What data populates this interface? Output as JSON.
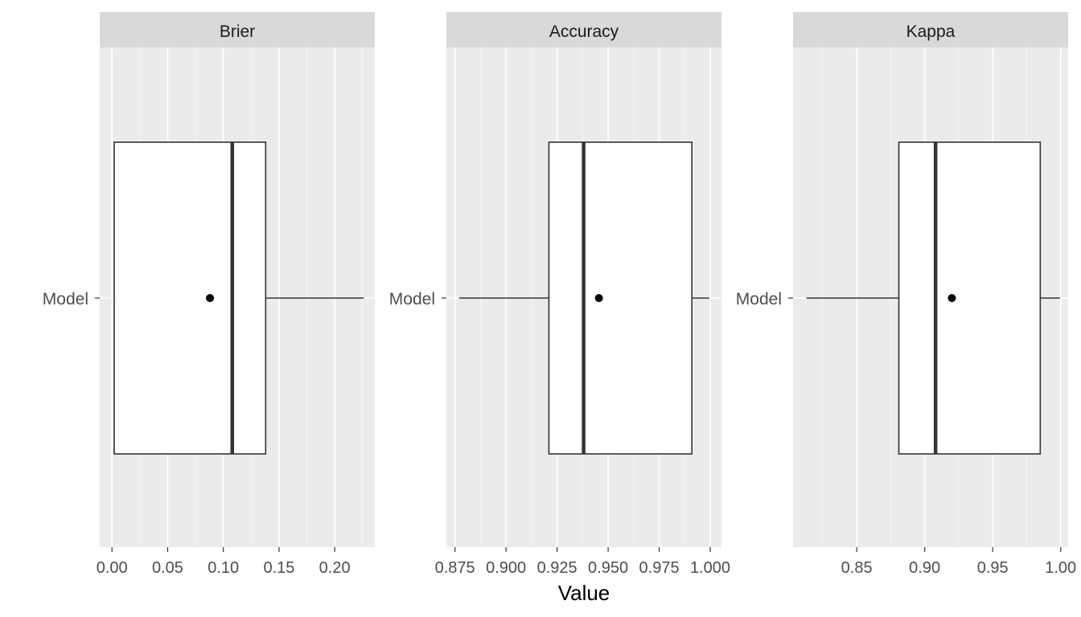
{
  "chart_data": {
    "type": "boxplot",
    "xlabel": "Value",
    "category_label": "Model",
    "colors": {
      "panel_background": "#ebebeb",
      "strip_background": "#d9d9d9",
      "gridline": "#ffffff",
      "box_fill": "#ffffff",
      "box_line": "#333333",
      "mean_point": "#000000"
    },
    "panels": [
      {
        "title": "Brier",
        "xlim": [
          -0.011,
          0.236
        ],
        "ticks": [
          0.0,
          0.05,
          0.1,
          0.15,
          0.2
        ],
        "tick_labels": [
          "0.00",
          "0.05",
          "0.10",
          "0.15",
          "0.20"
        ],
        "stats": {
          "min": 0.002,
          "q1": 0.002,
          "median": 0.108,
          "q3": 0.138,
          "max": 0.226,
          "mean": 0.088
        }
      },
      {
        "title": "Accuracy",
        "xlim": [
          0.8708,
          1.0055
        ],
        "ticks": [
          0.875,
          0.9,
          0.925,
          0.95,
          0.975,
          1.0
        ],
        "tick_labels": [
          "0.875",
          "0.900",
          "0.925",
          "0.950",
          "0.975",
          "1.000"
        ],
        "stats": {
          "min": 0.877,
          "q1": 0.921,
          "median": 0.938,
          "q3": 0.991,
          "max": 0.9995,
          "mean": 0.9455
        }
      },
      {
        "title": "Kappa",
        "xlim": [
          0.8032,
          1.0055
        ],
        "ticks": [
          0.85,
          0.9,
          0.95,
          1.0
        ],
        "tick_labels": [
          "0.85",
          "0.90",
          "0.95",
          "1.00"
        ],
        "stats": {
          "min": 0.813,
          "q1": 0.881,
          "median": 0.908,
          "q3": 0.985,
          "max": 0.9995,
          "mean": 0.92
        }
      }
    ]
  }
}
